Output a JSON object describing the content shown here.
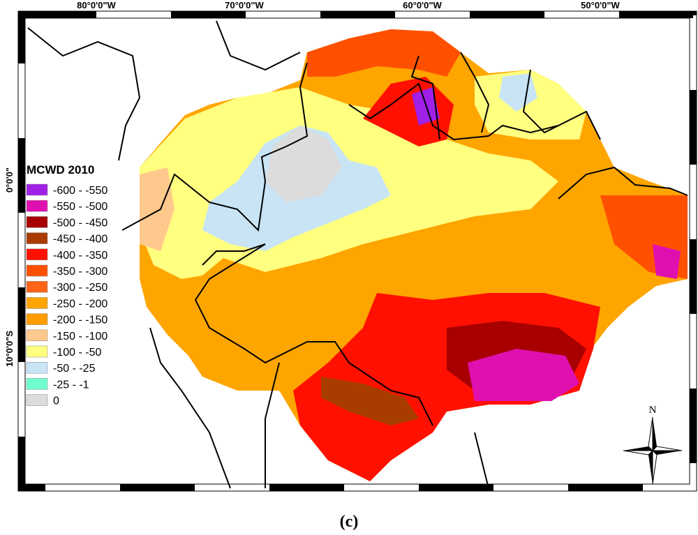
{
  "map": {
    "longitude_labels": [
      "80°0'0\"W",
      "70°0'0\"W",
      "60°0'0\"W",
      "50°0'0\"W"
    ],
    "latitude_labels": [
      "0°0'0\"",
      "10°0'0\"S"
    ],
    "legend": {
      "title": "MCWD 2010",
      "items": [
        {
          "label": "-600 - -550",
          "color": "#a020e8"
        },
        {
          "label": "-550 - -500",
          "color": "#e010b0"
        },
        {
          "label": "-500 - -450",
          "color": "#a80000"
        },
        {
          "label": "-450 - -400",
          "color": "#a83c00"
        },
        {
          "label": "-400 - -350",
          "color": "#ff1000"
        },
        {
          "label": "-350 - -300",
          "color": "#ff5000"
        },
        {
          "label": "-300 - -250",
          "color": "#ff6418"
        },
        {
          "label": "-250 - -200",
          "color": "#ffa500"
        },
        {
          "label": "-200 - -150",
          "color": "#ff9c00"
        },
        {
          "label": "-150 - -100",
          "color": "#ffc88c"
        },
        {
          "label": "-100 - -50",
          "color": "#ffff80"
        },
        {
          "label": "-50 - -25",
          "color": "#c8e4f5"
        },
        {
          "label": "-25 - -1",
          "color": "#70ffd0"
        },
        {
          "label": "0",
          "color": "#dcdcdc"
        }
      ]
    },
    "north_label": "N"
  },
  "caption": "(c)"
}
